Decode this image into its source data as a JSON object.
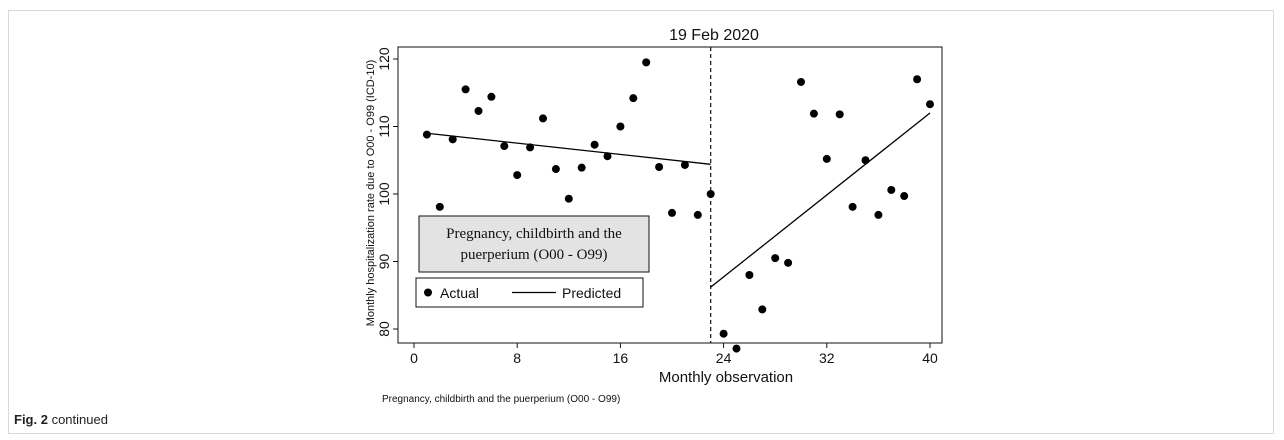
{
  "caption": {
    "label": "Fig. 2",
    "text": "continued"
  },
  "chart_data": {
    "type": "scatter",
    "xlabel": "Monthly observation",
    "ylabel": "Monthly hospitalization rate due to O00 - O99 (ICD-10)",
    "note": "Pregnancy, childbirth and the puerperium (O00 - O99)",
    "xlim": [
      0,
      40
    ],
    "ylim": [
      76,
      121
    ],
    "xticks": [
      0,
      8,
      16,
      24,
      32,
      40
    ],
    "yticks": [
      80,
      90,
      100,
      110,
      120
    ],
    "interruption": {
      "x": 23,
      "label": "19 Feb 2020"
    },
    "inset_label": [
      "Pregnancy, childbirth and the",
      "puerperium (O00 - O99)"
    ],
    "legend": {
      "actual": "Actual",
      "predicted": "Predicted"
    },
    "series": [
      {
        "name": "Actual",
        "points": [
          [
            1,
            108.8
          ],
          [
            2,
            98.1
          ],
          [
            3,
            108.1
          ],
          [
            4,
            115.5
          ],
          [
            5,
            112.3
          ],
          [
            6,
            114.4
          ],
          [
            7,
            107.1
          ],
          [
            8,
            102.8
          ],
          [
            9,
            106.9
          ],
          [
            10,
            111.2
          ],
          [
            11,
            103.7
          ],
          [
            12,
            99.3
          ],
          [
            13,
            103.9
          ],
          [
            14,
            107.3
          ],
          [
            15,
            105.6
          ],
          [
            16,
            110.0
          ],
          [
            17,
            114.2
          ],
          [
            18,
            119.5
          ],
          [
            19,
            104.0
          ],
          [
            20,
            97.2
          ],
          [
            21,
            104.3
          ],
          [
            22,
            96.9
          ],
          [
            23,
            100.0
          ],
          [
            24,
            79.3
          ],
          [
            25,
            77.1
          ],
          [
            26,
            88.0
          ],
          [
            27,
            82.9
          ],
          [
            28,
            90.5
          ],
          [
            29,
            89.8
          ],
          [
            30,
            116.6
          ],
          [
            31,
            111.9
          ],
          [
            32,
            105.2
          ],
          [
            33,
            111.8
          ],
          [
            34,
            98.1
          ],
          [
            35,
            105.0
          ],
          [
            36,
            96.9
          ],
          [
            37,
            100.6
          ],
          [
            38,
            99.7
          ],
          [
            39,
            117.0
          ],
          [
            40,
            113.3
          ]
        ]
      },
      {
        "name": "Predicted",
        "segments": [
          [
            [
              1,
              109.0
            ],
            [
              23,
              104.4
            ]
          ],
          [
            [
              23,
              86.2
            ],
            [
              40,
              112.0
            ]
          ]
        ]
      }
    ]
  }
}
